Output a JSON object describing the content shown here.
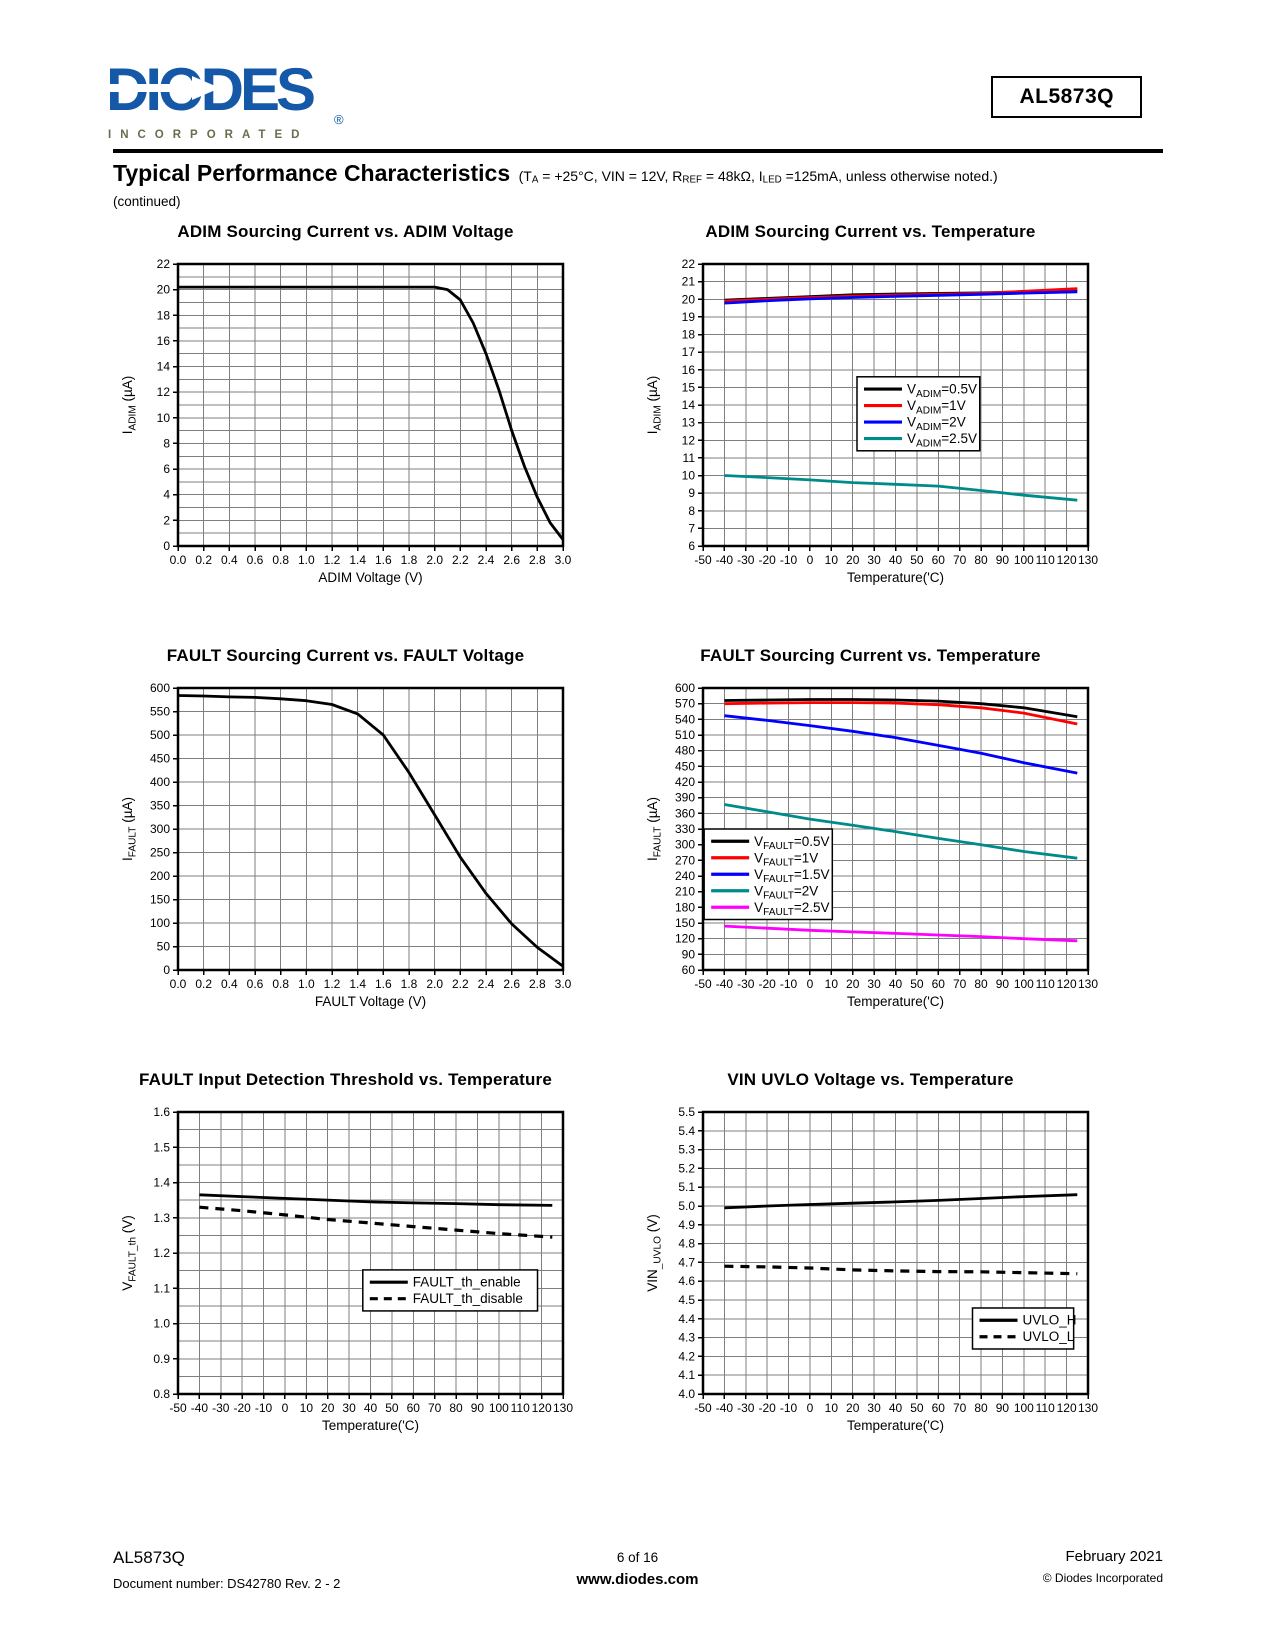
{
  "page": {
    "brand": {
      "name": "DIODES",
      "tagline": "INCORPORATED",
      "registered": "®"
    },
    "part_number": "AL5873Q",
    "section_title": "Typical Performance Characteristics",
    "conditions_segments": [
      {
        "t": "(T"
      },
      {
        "s": "A"
      },
      {
        "t": " = +25°C, VIN = 12V, R"
      },
      {
        "s": "REF"
      },
      {
        "t": " = 48kΩ, I"
      },
      {
        "s": "LED"
      },
      {
        "t": " =125mA, unless otherwise noted.)"
      }
    ],
    "continued": "(continued)",
    "footer": {
      "part": "AL5873Q",
      "doc": "Document number: DS42780 Rev. 2 - 2",
      "page": "6 of 16",
      "site": "www.diodes.com",
      "date": "February 2021",
      "copyright": "© Diodes Incorporated"
    }
  },
  "chart_data": [
    {
      "type": "line",
      "title": "ADIM Sourcing Current vs. ADIM Voltage",
      "xlabel": "ADIM Voltage (V)",
      "ylabel": "I_{ADIM} (µA)",
      "xlim": [
        0,
        3
      ],
      "xstep": 0.2,
      "ylim": [
        0,
        22
      ],
      "ystep": 2,
      "ygrid": 1,
      "grid": true,
      "legend": null,
      "series": [
        {
          "name": "",
          "color": "#000000",
          "dash": false,
          "points": [
            [
              0,
              20.2
            ],
            [
              0.5,
              20.2
            ],
            [
              1.0,
              20.2
            ],
            [
              1.5,
              20.2
            ],
            [
              1.9,
              20.2
            ],
            [
              2.0,
              20.2
            ],
            [
              2.1,
              20.0
            ],
            [
              2.2,
              19.2
            ],
            [
              2.3,
              17.4
            ],
            [
              2.4,
              15.0
            ],
            [
              2.5,
              12.2
            ],
            [
              2.6,
              9.0
            ],
            [
              2.7,
              6.2
            ],
            [
              2.8,
              3.8
            ],
            [
              2.9,
              1.8
            ],
            [
              3.0,
              0.5
            ]
          ]
        }
      ]
    },
    {
      "type": "line",
      "title": "ADIM Sourcing Current vs. Temperature",
      "xlabel": "Temperature('C)",
      "ylabel": "I_{ADIM} (µA)",
      "xlim": [
        -50,
        130
      ],
      "xstep": 10,
      "ylim": [
        6,
        22
      ],
      "ystep": 1,
      "ygrid": 1,
      "grid": true,
      "legend": {
        "x": 0.4,
        "y": 0.4
      },
      "series": [
        {
          "name": "V_{ADIM}=0.5V",
          "color": "#000000",
          "dash": false,
          "points": [
            [
              -40,
              19.95
            ],
            [
              -20,
              20.05
            ],
            [
              0,
              20.15
            ],
            [
              20,
              20.25
            ],
            [
              40,
              20.3
            ],
            [
              60,
              20.33
            ],
            [
              80,
              20.36
            ],
            [
              100,
              20.42
            ],
            [
              125,
              20.52
            ]
          ]
        },
        {
          "name": "V_{ADIM}=1V",
          "color": "#ff0000",
          "dash": false,
          "points": [
            [
              -40,
              19.9
            ],
            [
              -20,
              20.0
            ],
            [
              0,
              20.1
            ],
            [
              20,
              20.18
            ],
            [
              40,
              20.24
            ],
            [
              60,
              20.28
            ],
            [
              80,
              20.33
            ],
            [
              100,
              20.45
            ],
            [
              125,
              20.6
            ]
          ]
        },
        {
          "name": "V_{ADIM}=2V",
          "color": "#0000ff",
          "dash": false,
          "points": [
            [
              -40,
              19.78
            ],
            [
              -20,
              19.92
            ],
            [
              0,
              20.02
            ],
            [
              20,
              20.1
            ],
            [
              40,
              20.17
            ],
            [
              60,
              20.22
            ],
            [
              80,
              20.28
            ],
            [
              100,
              20.35
            ],
            [
              125,
              20.42
            ]
          ]
        },
        {
          "name": "V_{ADIM}=2.5V",
          "color": "#008B8B",
          "dash": false,
          "points": [
            [
              -40,
              10.0
            ],
            [
              -20,
              9.88
            ],
            [
              0,
              9.75
            ],
            [
              20,
              9.6
            ],
            [
              40,
              9.5
            ],
            [
              60,
              9.4
            ],
            [
              80,
              9.15
            ],
            [
              100,
              8.88
            ],
            [
              125,
              8.6
            ]
          ]
        }
      ]
    },
    {
      "type": "line",
      "title": "FAULT Sourcing Current vs. FAULT Voltage",
      "xlabel": "FAULT Voltage (V)",
      "ylabel": "I_{FAULT} (µA)",
      "xlim": [
        0,
        3
      ],
      "xstep": 0.2,
      "ylim": [
        0,
        600
      ],
      "ystep": 50,
      "ygrid": 50,
      "grid": true,
      "legend": null,
      "series": [
        {
          "name": "",
          "color": "#000000",
          "dash": false,
          "points": [
            [
              0,
              584
            ],
            [
              0.2,
              583
            ],
            [
              0.4,
              581
            ],
            [
              0.6,
              580
            ],
            [
              0.8,
              577
            ],
            [
              1.0,
              573
            ],
            [
              1.2,
              565
            ],
            [
              1.4,
              545
            ],
            [
              1.6,
              500
            ],
            [
              1.8,
              420
            ],
            [
              2.0,
              330
            ],
            [
              2.2,
              240
            ],
            [
              2.4,
              163
            ],
            [
              2.6,
              98
            ],
            [
              2.8,
              48
            ],
            [
              3.0,
              8
            ]
          ]
        }
      ]
    },
    {
      "type": "line",
      "title": "FAULT Sourcing Current vs. Temperature",
      "xlabel": "Temperature('C)",
      "ylabel": "I_{FAULT} (µA)",
      "xlim": [
        -50,
        130
      ],
      "xstep": 10,
      "ylim": [
        60,
        600
      ],
      "ystep": 30,
      "ygrid": 30,
      "grid": true,
      "legend": {
        "x": 0.003,
        "y": 0.5
      },
      "series": [
        {
          "name": "V_{FAULT}=0.5V",
          "color": "#000000",
          "dash": false,
          "points": [
            [
              -40,
              576
            ],
            [
              -20,
              577
            ],
            [
              0,
              578
            ],
            [
              20,
              578
            ],
            [
              40,
              577
            ],
            [
              60,
              575
            ],
            [
              80,
              570
            ],
            [
              100,
              562
            ],
            [
              125,
              545
            ]
          ]
        },
        {
          "name": "V_{FAULT}=1V",
          "color": "#ff0000",
          "dash": false,
          "points": [
            [
              -40,
              570
            ],
            [
              -20,
              571
            ],
            [
              0,
              572
            ],
            [
              20,
              572
            ],
            [
              40,
              571
            ],
            [
              60,
              568
            ],
            [
              80,
              562
            ],
            [
              100,
              552
            ],
            [
              125,
              531
            ]
          ]
        },
        {
          "name": "V_{FAULT}=1.5V",
          "color": "#0000ff",
          "dash": false,
          "points": [
            [
              -40,
              547
            ],
            [
              -20,
              538
            ],
            [
              0,
              528
            ],
            [
              20,
              517
            ],
            [
              40,
              505
            ],
            [
              60,
              490
            ],
            [
              80,
              475
            ],
            [
              100,
              457
            ],
            [
              125,
              437
            ]
          ]
        },
        {
          "name": "V_{FAULT}=2V",
          "color": "#008B8B",
          "dash": false,
          "points": [
            [
              -40,
              377
            ],
            [
              -20,
              363
            ],
            [
              0,
              349
            ],
            [
              20,
              337
            ],
            [
              40,
              325
            ],
            [
              60,
              312
            ],
            [
              80,
              300
            ],
            [
              100,
              287
            ],
            [
              125,
              274
            ]
          ]
        },
        {
          "name": "V_{FAULT}=2.5V",
          "color": "#ff00ff",
          "dash": false,
          "points": [
            [
              -40,
              144
            ],
            [
              -20,
              140
            ],
            [
              0,
              136
            ],
            [
              20,
              133
            ],
            [
              40,
              130
            ],
            [
              60,
              127
            ],
            [
              80,
              124
            ],
            [
              100,
              120
            ],
            [
              125,
              116
            ]
          ]
        }
      ]
    },
    {
      "type": "line",
      "title": "FAULT Input Detection Threshold vs. Temperature",
      "xlabel": "Temperature('C)",
      "ylabel": "V_{FAULT_th} (V)",
      "xlim": [
        -50,
        130
      ],
      "xstep": 10,
      "ylim": [
        0.8,
        1.6
      ],
      "ystep": 0.1,
      "ygrid": 0.05,
      "grid": true,
      "legend": {
        "x": 0.48,
        "y": 0.56
      },
      "series": [
        {
          "name": "FAULT_th_enable",
          "color": "#000000",
          "dash": false,
          "points": [
            [
              -40,
              1.365
            ],
            [
              -20,
              1.36
            ],
            [
              0,
              1.355
            ],
            [
              20,
              1.35
            ],
            [
              40,
              1.345
            ],
            [
              60,
              1.342
            ],
            [
              80,
              1.34
            ],
            [
              100,
              1.337
            ],
            [
              125,
              1.335
            ]
          ]
        },
        {
          "name": "FAULT_th_disable",
          "color": "#000000",
          "dash": true,
          "points": [
            [
              -40,
              1.33
            ],
            [
              -20,
              1.32
            ],
            [
              0,
              1.308
            ],
            [
              20,
              1.295
            ],
            [
              40,
              1.285
            ],
            [
              60,
              1.275
            ],
            [
              80,
              1.265
            ],
            [
              100,
              1.255
            ],
            [
              125,
              1.245
            ]
          ]
        }
      ]
    },
    {
      "type": "line",
      "title": "VIN UVLO Voltage vs. Temperature",
      "xlabel": "Temperature('C)",
      "ylabel": "VIN_{_UVLO} (V)",
      "xlim": [
        -50,
        130
      ],
      "xstep": 10,
      "ylim": [
        4.0,
        5.5
      ],
      "ystep": 0.1,
      "ygrid": 0.1,
      "grid": true,
      "legend": {
        "x": 0.7,
        "y": 0.695
      },
      "series": [
        {
          "name": "UVLO_H",
          "color": "#000000",
          "dash": false,
          "points": [
            [
              -40,
              4.99
            ],
            [
              -20,
              5.0
            ],
            [
              0,
              5.008
            ],
            [
              20,
              5.015
            ],
            [
              40,
              5.022
            ],
            [
              60,
              5.03
            ],
            [
              80,
              5.04
            ],
            [
              100,
              5.05
            ],
            [
              125,
              5.06
            ]
          ]
        },
        {
          "name": "UVLO_L",
          "color": "#000000",
          "dash": true,
          "points": [
            [
              -40,
              4.68
            ],
            [
              -20,
              4.676
            ],
            [
              0,
              4.67
            ],
            [
              20,
              4.66
            ],
            [
              40,
              4.655
            ],
            [
              60,
              4.651
            ],
            [
              80,
              4.65
            ],
            [
              100,
              4.645
            ],
            [
              125,
              4.64
            ]
          ]
        }
      ]
    }
  ]
}
